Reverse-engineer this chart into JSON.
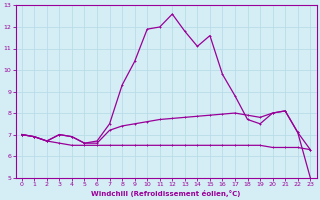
{
  "xlabel": "Windchill (Refroidissement éolien,°C)",
  "ylabel": "",
  "xlim": [
    -0.5,
    23.5
  ],
  "ylim": [
    5,
    13
  ],
  "xticks": [
    0,
    1,
    2,
    3,
    4,
    5,
    6,
    7,
    8,
    9,
    10,
    11,
    12,
    13,
    14,
    15,
    16,
    17,
    18,
    19,
    20,
    21,
    22,
    23
  ],
  "yticks": [
    5,
    6,
    7,
    8,
    9,
    10,
    11,
    12,
    13
  ],
  "background_color": "#d5eef5",
  "line_color": "#990099",
  "grid_color": "#b8dde8",
  "series1_x": [
    0,
    1,
    2,
    3,
    4,
    5,
    6,
    7,
    8,
    9,
    10,
    11,
    12,
    13,
    14,
    15,
    16,
    17,
    18,
    19,
    20,
    21,
    22,
    23
  ],
  "series1_y": [
    7.0,
    6.9,
    6.7,
    6.6,
    6.5,
    6.5,
    6.5,
    6.5,
    6.5,
    6.5,
    6.5,
    6.5,
    6.5,
    6.5,
    6.5,
    6.5,
    6.5,
    6.5,
    6.5,
    6.5,
    6.4,
    6.4,
    6.4,
    6.3
  ],
  "series2_x": [
    0,
    1,
    2,
    3,
    4,
    5,
    6,
    7,
    8,
    9,
    10,
    11,
    12,
    13,
    14,
    15,
    16,
    17,
    18,
    19,
    20,
    21,
    22,
    23
  ],
  "series2_y": [
    7.0,
    6.9,
    6.7,
    7.0,
    6.9,
    6.6,
    6.6,
    7.2,
    7.4,
    7.5,
    7.6,
    7.7,
    7.75,
    7.8,
    7.85,
    7.9,
    7.95,
    8.0,
    7.9,
    7.8,
    8.0,
    8.1,
    7.1,
    6.3
  ],
  "series3_x": [
    0,
    1,
    2,
    3,
    4,
    5,
    6,
    7,
    8,
    9,
    10,
    11,
    12,
    13,
    14,
    15,
    16,
    17,
    18,
    19,
    20,
    21,
    22,
    23
  ],
  "series3_y": [
    7.0,
    6.9,
    6.7,
    7.0,
    6.9,
    6.6,
    6.7,
    7.5,
    9.3,
    10.4,
    11.9,
    12.0,
    12.6,
    11.8,
    11.1,
    11.6,
    9.8,
    8.8,
    7.7,
    7.5,
    8.0,
    8.1,
    7.1,
    5.0
  ]
}
